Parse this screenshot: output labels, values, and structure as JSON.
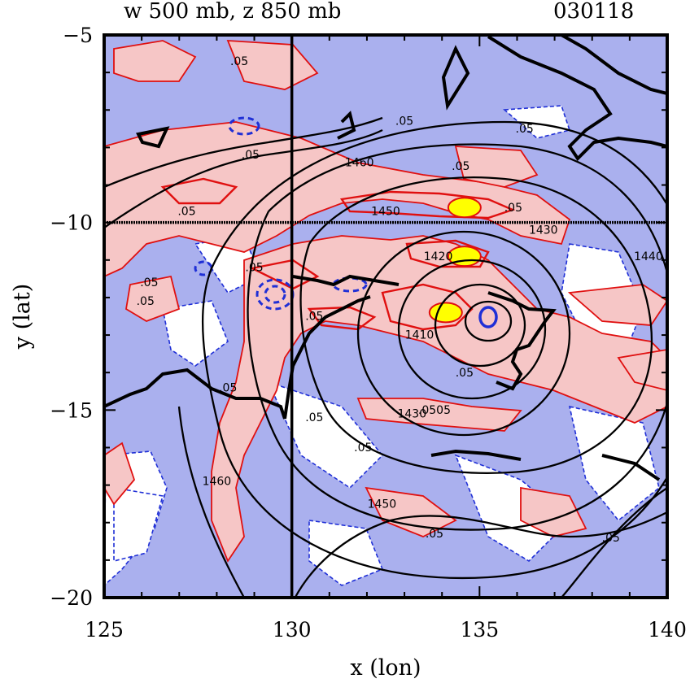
{
  "header": {
    "title": "w 500 mb, z 850 mb",
    "date": "030118"
  },
  "colors": {
    "negative_fill": "#aab0ee",
    "positive_fill": "#f6c6c6",
    "strong_positive_fill": "#ffff00",
    "negative_contour": "#1f2fd6",
    "positive_contour": "#e01010",
    "height_contour": "#000000",
    "background": "#ffffff"
  },
  "chart_data": {
    "type": "contour",
    "title": "w 500 mb, z 850 mb",
    "xlabel": "x (lon)",
    "ylabel": "y (lat)",
    "xlim": [
      125,
      140
    ],
    "ylim": [
      -20,
      -5
    ],
    "xticks": [
      125,
      130,
      135,
      140
    ],
    "yticks": [
      -5,
      -10,
      -15,
      -20
    ],
    "xtick_labels": [
      "125",
      "130",
      "135",
      "140"
    ],
    "ytick_labels": [
      "−5",
      "−10",
      "−15",
      "−20"
    ],
    "reference_lines": {
      "lon": 130,
      "lat": -10
    },
    "height_contours": {
      "field": "z 850 mb",
      "center": [
        135.2,
        -12.6
      ],
      "labeled_levels": [
        1430,
        1440,
        1450,
        1460
      ]
    },
    "w_field": {
      "field": "w 500 mb",
      "contour_label": ".05",
      "maxima": [
        {
          "lon": 134.6,
          "lat": -9.6
        },
        {
          "lon": 134.6,
          "lat": -10.9
        },
        {
          "lon": 134.1,
          "lat": -12.4
        }
      ]
    },
    "contour_labels": [
      {
        "text": "1460",
        "lon": 131.8,
        "lat": -8.5
      },
      {
        "text": "1450",
        "lon": 132.5,
        "lat": -9.8
      },
      {
        "text": "1430",
        "lon": 136.7,
        "lat": -10.3
      },
      {
        "text": "1440",
        "lon": 139.5,
        "lat": -11.0
      },
      {
        "text": "1430",
        "lon": 133.2,
        "lat": -15.2
      },
      {
        "text": "1450",
        "lon": 132.4,
        "lat": -17.6
      },
      {
        "text": "1460",
        "lon": 128.0,
        "lat": -17.0
      },
      {
        "text": "1420",
        "lon": 133.9,
        "lat": -11.0
      },
      {
        "text": "1410",
        "lon": 133.4,
        "lat": -13.1
      },
      {
        "text": ".05",
        "lon": 129.0,
        "lat": -11.3
      },
      {
        "text": ".05",
        "lon": 128.3,
        "lat": -14.5
      },
      {
        "text": ".05",
        "lon": 133.0,
        "lat": -7.4
      },
      {
        "text": ".05",
        "lon": 134.5,
        "lat": -8.6
      },
      {
        "text": ".05",
        "lon": 136.2,
        "lat": -7.6
      },
      {
        "text": ".05",
        "lon": 130.6,
        "lat": -12.6
      },
      {
        "text": ".05",
        "lon": 134.6,
        "lat": -14.1
      },
      {
        "text": ".0505",
        "lon": 133.8,
        "lat": -15.1
      },
      {
        "text": ".05",
        "lon": 131.9,
        "lat": -16.1
      },
      {
        "text": ".05",
        "lon": 133.8,
        "lat": -18.4
      },
      {
        "text": ".05",
        "lon": 138.5,
        "lat": -18.5
      },
      {
        "text": ".05",
        "lon": 126.2,
        "lat": -11.7
      },
      {
        "text": ".05",
        "lon": 126.1,
        "lat": -12.2
      },
      {
        "text": ".05",
        "lon": 127.2,
        "lat": -9.8
      },
      {
        "text": ".05",
        "lon": 128.6,
        "lat": -5.8
      },
      {
        "text": ".05",
        "lon": 128.9,
        "lat": -8.3
      },
      {
        "text": ".05",
        "lon": 130.6,
        "lat": -15.3
      },
      {
        "text": ".05",
        "lon": 135.9,
        "lat": -9.7
      }
    ]
  }
}
